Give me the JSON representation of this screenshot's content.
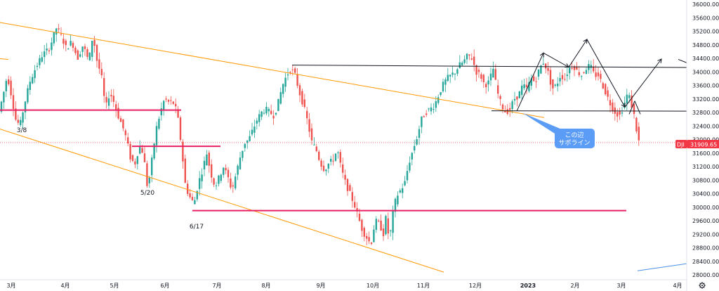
{
  "chart_data": {
    "type": "candlestick",
    "symbol": "DJI",
    "last_price": "31909.65",
    "ylim": [
      28000,
      36000
    ],
    "y_ticks": [
      "28000.00",
      "28400.00",
      "28800.00",
      "29200.00",
      "29600.00",
      "30000.00",
      "30400.00",
      "30800.00",
      "31200.00",
      "31600.00",
      "32000.00",
      "32400.00",
      "32800.00",
      "33200.00",
      "33600.00",
      "34000.00",
      "34400.00",
      "34800.00",
      "35200.00",
      "35600.00",
      "36000.00"
    ],
    "x_ticks": [
      {
        "label": "3月",
        "bold": false
      },
      {
        "label": "4月",
        "bold": false
      },
      {
        "label": "5月",
        "bold": false
      },
      {
        "label": "6月",
        "bold": false
      },
      {
        "label": "7月",
        "bold": false
      },
      {
        "label": "8月",
        "bold": false
      },
      {
        "label": "9月",
        "bold": false
      },
      {
        "label": "10月",
        "bold": false
      },
      {
        "label": "11月",
        "bold": false
      },
      {
        "label": "12月",
        "bold": false
      },
      {
        "label": "2023",
        "bold": true
      },
      {
        "label": "2月",
        "bold": false
      },
      {
        "label": "3月",
        "bold": false
      },
      {
        "label": "4月",
        "bold": false
      }
    ],
    "annotations": [
      {
        "text": "3/8",
        "price": 32300
      },
      {
        "text": "5/20",
        "price": 30450
      },
      {
        "text": "6/17",
        "price": 29450
      }
    ],
    "callout": {
      "line1": "この辺",
      "line2": "サポライン"
    },
    "horizontal_levels": [
      {
        "name": "support-1",
        "price": 32870,
        "color": "#e91e63"
      },
      {
        "name": "support-2",
        "price": 31800,
        "color": "#e91e63"
      },
      {
        "name": "support-3",
        "price": 29900,
        "color": "#e91e63"
      },
      {
        "name": "resistance-black",
        "price": 34130,
        "color": "#131722"
      },
      {
        "name": "support-black",
        "price": 32840,
        "color": "#131722"
      }
    ],
    "colors": {
      "up": "#26a69a",
      "down": "#ef5350",
      "trend": "#ff9800",
      "level": "#e91e63",
      "badge": "#f23645",
      "callout": "#5b9cf6"
    },
    "grid": false
  }
}
